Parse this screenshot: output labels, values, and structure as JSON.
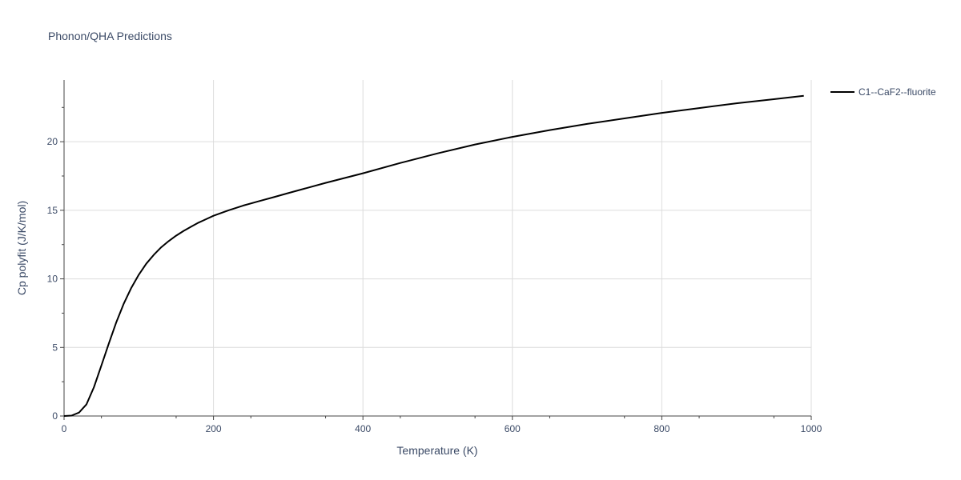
{
  "chart_data": {
    "type": "line",
    "title": "Phonon/QHA Predictions",
    "xlabel": "Temperature (K)",
    "ylabel": "Cp polyfit (J/K/mol)",
    "xlim": [
      0,
      1000
    ],
    "ylim": [
      0,
      24.5
    ],
    "x_ticks": [
      0,
      200,
      400,
      600,
      800,
      1000
    ],
    "x_tick_labels": [
      "0",
      "200",
      "400",
      "600",
      "800",
      "1000"
    ],
    "y_ticks": [
      0,
      5,
      10,
      15,
      20
    ],
    "y_tick_labels": [
      "0",
      "5",
      "10",
      "15",
      "20"
    ],
    "grid": true,
    "legend_position": "top-right",
    "series": [
      {
        "name": "C1--CaF2--fluorite",
        "color": "#000000",
        "x": [
          0,
          10,
          20,
          30,
          40,
          50,
          60,
          70,
          80,
          90,
          100,
          110,
          120,
          130,
          140,
          150,
          160,
          170,
          180,
          190,
          200,
          220,
          240,
          260,
          280,
          300,
          350,
          400,
          450,
          500,
          550,
          600,
          650,
          700,
          750,
          800,
          850,
          900,
          950,
          990
        ],
        "y": [
          0,
          0.03,
          0.25,
          0.85,
          2.1,
          3.7,
          5.3,
          6.85,
          8.2,
          9.35,
          10.3,
          11.1,
          11.75,
          12.3,
          12.75,
          13.15,
          13.5,
          13.8,
          14.1,
          14.35,
          14.6,
          15.0,
          15.35,
          15.65,
          15.95,
          16.25,
          17.0,
          17.7,
          18.45,
          19.15,
          19.8,
          20.35,
          20.85,
          21.3,
          21.7,
          22.1,
          22.45,
          22.8,
          23.1,
          23.35
        ]
      }
    ]
  }
}
